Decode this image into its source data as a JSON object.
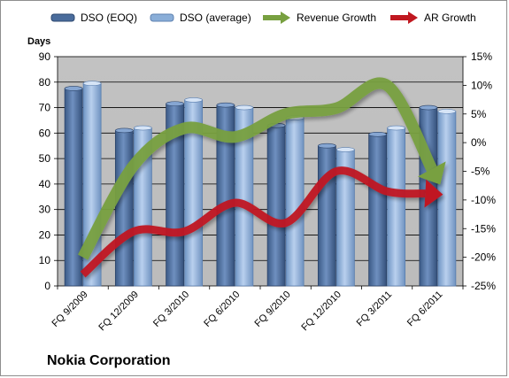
{
  "chart_data": {
    "type": "bar",
    "title": "Nokia Corporation",
    "ylabel": "Days",
    "ylim": [
      0,
      90
    ],
    "y_ticks": [
      "0",
      "10",
      "20",
      "30",
      "40",
      "50",
      "60",
      "70",
      "80",
      "90"
    ],
    "y2lim": [
      -25,
      15
    ],
    "y2_ticks": [
      "-25%",
      "-20%",
      "-15%",
      "-10%",
      "-5%",
      "0%",
      "5%",
      "10%",
      "15%"
    ],
    "categories": [
      "FQ 9/2009",
      "FQ 12/2009",
      "FQ 3/2010",
      "FQ 6/2010",
      "FQ 9/2010",
      "FQ 12/2010",
      "FQ 3/2011",
      "FQ 6/2011"
    ],
    "series": [
      {
        "name": "DSO (EOQ)",
        "kind": "bar",
        "axis": "left",
        "color": "#4a6c9c",
        "values": [
          77.5,
          61,
          71.5,
          71,
          63,
          55,
          59.5,
          70
        ]
      },
      {
        "name": "DSO (average)",
        "kind": "bar",
        "axis": "left",
        "color": "#8aaed8",
        "values": [
          79.5,
          62,
          73,
          70,
          66,
          53.5,
          62,
          68.5
        ]
      },
      {
        "name": "Revenue Growth",
        "kind": "line",
        "axis": "right",
        "color": "#78a040",
        "values": [
          -20,
          -4,
          2.5,
          1,
          5,
          6,
          10,
          -6.5
        ]
      },
      {
        "name": "AR Growth",
        "kind": "line",
        "axis": "right",
        "color": "#c01820",
        "values": [
          -23,
          -15.5,
          -15.5,
          -10.5,
          -14,
          -5,
          -8.5,
          -9
        ]
      }
    ],
    "grid": true,
    "legend_position": "top"
  },
  "colors": {
    "plot_background": "#c0c0c0",
    "grid": "#000000"
  }
}
